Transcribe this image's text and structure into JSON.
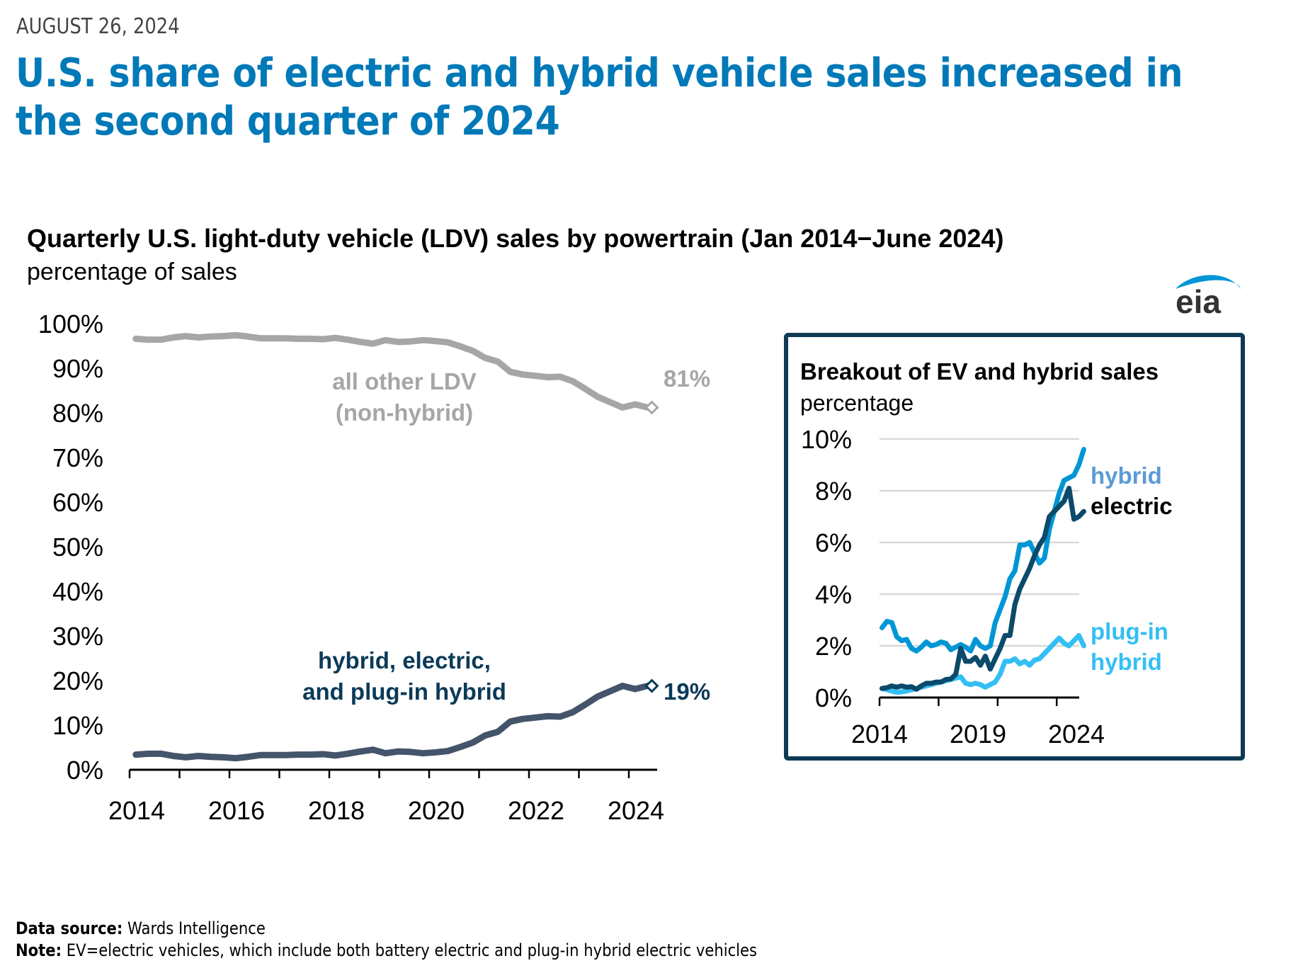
{
  "header": {
    "date": "AUGUST 26, 2024",
    "headline": "U.S. share of electric and hybrid vehicle sales increased in the second quarter of 2024"
  },
  "logo": {
    "text": "eia",
    "arc_color": "#0096d6",
    "text_color": "#333333"
  },
  "footer": {
    "source_label": "Data source:",
    "source_text": "Wards Intelligence",
    "note_label": "Note:",
    "note_text": "EV=electric vehicles, which include both battery electric and plug-in hybrid electric vehicles"
  },
  "colors": {
    "headline": "#0079b8",
    "other_ldv": "#a6a6a6",
    "combined": "#44546a",
    "combined_label": "#0b3a58",
    "hybrid": "#0096d6",
    "hybrid_label": "#5b9bd5",
    "electric": "#0b4a6b",
    "plugin_hybrid": "#33bff3",
    "inset_border": "#0e3a55",
    "grid": "#d9d9d9"
  },
  "chart_data": [
    {
      "type": "line",
      "title": "Quarterly U.S. light-duty vehicle (LDV) sales by powertrain (Jan 2014−June 2024)",
      "ylabel": "percentage of sales",
      "xlabel": "",
      "x_start": 2014,
      "x_step": 0.25,
      "x_ticks": [
        2014,
        2015,
        2016,
        2017,
        2018,
        2019,
        2020,
        2021,
        2022,
        2023,
        2024
      ],
      "x_tick_labels": [
        "2014",
        "2016",
        "2018",
        "2020",
        "2022",
        "2024"
      ],
      "x_tick_label_years": [
        2014,
        2016,
        2018,
        2020,
        2022,
        2024
      ],
      "ylim": [
        0,
        100
      ],
      "y_ticks": [
        0,
        10,
        20,
        30,
        40,
        50,
        60,
        70,
        80,
        90,
        100
      ],
      "y_tick_labels": [
        "0%",
        "10%",
        "20%",
        "30%",
        "40%",
        "50%",
        "60%",
        "70%",
        "80%",
        "90%",
        "100%"
      ],
      "grid": false,
      "series": [
        {
          "name": "all other LDV (non-hybrid)",
          "label_lines": [
            "all other LDV",
            "(non-hybrid)"
          ],
          "end_label": "81%",
          "values": [
            96.6,
            96.4,
            96.4,
            96.9,
            97.2,
            96.9,
            97.1,
            97.2,
            97.4,
            97.1,
            96.7,
            96.7,
            96.7,
            96.6,
            96.6,
            96.5,
            96.8,
            96.4,
            95.9,
            95.5,
            96.3,
            95.9,
            96.0,
            96.3,
            96.1,
            95.8,
            94.9,
            93.9,
            92.3,
            91.5,
            89.2,
            88.6,
            88.3,
            88.0,
            88.1,
            87.1,
            85.4,
            83.6,
            82.4,
            81.2,
            81.9,
            81.2
          ]
        },
        {
          "name": "hybrid, electric, and plug-in hybrid",
          "label_lines": [
            "hybrid, electric,",
            "and plug-in hybrid"
          ],
          "end_label": "19%",
          "values": [
            3.4,
            3.6,
            3.6,
            3.1,
            2.8,
            3.1,
            2.9,
            2.8,
            2.6,
            2.9,
            3.3,
            3.3,
            3.3,
            3.4,
            3.4,
            3.5,
            3.2,
            3.6,
            4.1,
            4.5,
            3.7,
            4.1,
            4.0,
            3.7,
            3.9,
            4.2,
            5.1,
            6.1,
            7.7,
            8.5,
            10.8,
            11.4,
            11.7,
            12.0,
            11.9,
            12.9,
            14.6,
            16.4,
            17.6,
            18.8,
            18.1,
            18.8
          ]
        }
      ]
    },
    {
      "type": "line",
      "title": "Breakout of EV and hybrid sales",
      "ylabel": "percentage",
      "xlabel": "",
      "x_start": 2014,
      "x_step": 0.25,
      "x_ticks": [
        2014,
        2017,
        2020,
        2023
      ],
      "x_tick_labels": [
        "2014",
        "2019",
        "2024"
      ],
      "x_tick_label_years": [
        2014,
        2019,
        2024
      ],
      "ylim": [
        0,
        10
      ],
      "y_ticks": [
        0,
        2,
        4,
        6,
        8,
        10
      ],
      "y_tick_labels": [
        "0%",
        "2%",
        "4%",
        "6%",
        "8%",
        "10%"
      ],
      "grid": true,
      "series": [
        {
          "name": "hybrid",
          "label_lines": [
            "hybrid"
          ],
          "values": [
            2.7,
            2.95,
            2.9,
            2.35,
            2.2,
            2.25,
            1.9,
            1.8,
            1.95,
            2.15,
            2.0,
            2.05,
            2.15,
            2.1,
            1.85,
            1.95,
            2.05,
            1.95,
            1.8,
            2.25,
            2.0,
            1.9,
            2.0,
            2.9,
            3.4,
            3.9,
            4.6,
            4.9,
            5.9,
            5.9,
            6.0,
            5.6,
            5.2,
            5.4,
            6.5,
            7.2,
            7.9,
            8.4,
            8.5,
            8.6,
            9.0,
            9.6
          ]
        },
        {
          "name": "electric",
          "label_lines": [
            "electric"
          ],
          "values": [
            0.35,
            0.38,
            0.45,
            0.4,
            0.45,
            0.4,
            0.42,
            0.32,
            0.45,
            0.55,
            0.55,
            0.6,
            0.6,
            0.7,
            0.72,
            0.9,
            1.9,
            1.4,
            1.4,
            1.55,
            1.25,
            1.6,
            1.1,
            1.5,
            1.9,
            2.4,
            2.4,
            3.6,
            4.2,
            4.6,
            5.0,
            5.5,
            5.9,
            6.2,
            7.0,
            7.2,
            7.4,
            7.6,
            8.1,
            6.9,
            7.0,
            7.2
          ]
        },
        {
          "name": "plug-in hybrid",
          "label_lines": [
            "plug-in",
            "hybrid"
          ],
          "values": [
            0.35,
            0.3,
            0.25,
            0.2,
            0.22,
            0.25,
            0.3,
            0.35,
            0.4,
            0.45,
            0.5,
            0.55,
            0.6,
            0.65,
            0.7,
            0.75,
            0.8,
            0.55,
            0.5,
            0.55,
            0.5,
            0.4,
            0.5,
            0.6,
            0.9,
            1.4,
            1.4,
            1.5,
            1.3,
            1.4,
            1.25,
            1.45,
            1.5,
            1.7,
            1.9,
            2.1,
            2.3,
            2.1,
            2.0,
            2.2,
            2.4,
            2.0
          ]
        }
      ]
    }
  ]
}
